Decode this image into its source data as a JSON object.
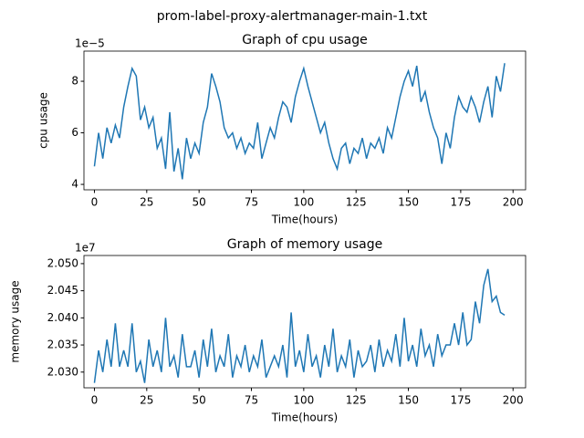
{
  "title": "prom-label-proxy-alertmanager-main-1.txt",
  "chart_data": [
    {
      "type": "line",
      "title": "Graph of cpu usage",
      "xlabel": "Time(hours)",
      "ylabel": "cpu usage",
      "offset_text": "1e−5",
      "x": [
        0,
        2,
        4,
        6,
        8,
        10,
        12,
        14,
        16,
        18,
        20,
        22,
        24,
        26,
        28,
        30,
        32,
        34,
        36,
        38,
        40,
        42,
        44,
        46,
        48,
        50,
        52,
        54,
        56,
        58,
        60,
        62,
        64,
        66,
        68,
        70,
        72,
        74,
        76,
        78,
        80,
        82,
        84,
        86,
        88,
        90,
        92,
        94,
        96,
        98,
        100,
        102,
        104,
        106,
        108,
        110,
        112,
        114,
        116,
        118,
        120,
        122,
        124,
        126,
        128,
        130,
        132,
        134,
        136,
        138,
        140,
        142,
        144,
        146,
        148,
        150,
        152,
        154,
        156,
        158,
        160,
        162,
        164,
        166,
        168,
        170,
        172,
        174,
        176,
        178,
        180,
        182,
        184,
        186,
        188,
        190,
        192,
        194,
        196
      ],
      "values": [
        4.7,
        6.0,
        5.0,
        6.2,
        5.6,
        6.3,
        5.8,
        7.0,
        7.8,
        8.5,
        8.2,
        6.5,
        7.0,
        6.2,
        6.6,
        5.4,
        5.8,
        4.6,
        6.8,
        4.5,
        5.4,
        4.2,
        5.8,
        5.0,
        5.6,
        5.2,
        6.4,
        7.0,
        8.3,
        7.8,
        7.2,
        6.2,
        5.8,
        6.0,
        5.4,
        5.8,
        5.2,
        5.6,
        5.4,
        6.4,
        5.0,
        5.6,
        6.2,
        5.8,
        6.6,
        7.2,
        7.0,
        6.4,
        7.4,
        8.0,
        8.5,
        7.8,
        7.2,
        6.6,
        6.0,
        6.4,
        5.6,
        5.0,
        4.6,
        5.4,
        5.6,
        4.8,
        5.4,
        5.2,
        5.8,
        5.0,
        5.6,
        5.4,
        5.8,
        5.2,
        6.2,
        5.8,
        6.6,
        7.4,
        8.0,
        8.4,
        7.8,
        8.6,
        7.2,
        7.6,
        6.8,
        6.2,
        5.8,
        4.8,
        6.0,
        5.4,
        6.6,
        7.4,
        7.0,
        6.8,
        7.4,
        7.0,
        6.4,
        7.2,
        7.8,
        6.6,
        8.2,
        7.6,
        8.7
      ],
      "color": "#1f77b4",
      "xlim": [
        -5,
        206
      ],
      "xticks": [
        0,
        25,
        50,
        75,
        100,
        125,
        150,
        175,
        200
      ],
      "ylim": [
        3.79,
        9.17
      ],
      "yticks": [
        4,
        6,
        8
      ]
    },
    {
      "type": "line",
      "title": "Graph of memory usage",
      "xlabel": "Time(hours)",
      "ylabel": "memory usage",
      "offset_text": "1e7",
      "x": [
        0,
        2,
        4,
        6,
        8,
        10,
        12,
        14,
        16,
        18,
        20,
        22,
        24,
        26,
        28,
        30,
        32,
        34,
        36,
        38,
        40,
        42,
        44,
        46,
        48,
        50,
        52,
        54,
        56,
        58,
        60,
        62,
        64,
        66,
        68,
        70,
        72,
        74,
        76,
        78,
        80,
        82,
        84,
        86,
        88,
        90,
        92,
        94,
        96,
        98,
        100,
        102,
        104,
        106,
        108,
        110,
        112,
        114,
        116,
        118,
        120,
        122,
        124,
        126,
        128,
        130,
        132,
        134,
        136,
        138,
        140,
        142,
        144,
        146,
        148,
        150,
        152,
        154,
        156,
        158,
        160,
        162,
        164,
        166,
        168,
        170,
        172,
        174,
        176,
        178,
        180,
        182,
        184,
        186,
        188,
        190,
        192,
        194,
        196
      ],
      "values": [
        2.028,
        2.034,
        2.03,
        2.036,
        2.031,
        2.039,
        2.031,
        2.034,
        2.031,
        2.039,
        2.03,
        2.032,
        2.028,
        2.036,
        2.031,
        2.034,
        2.03,
        2.04,
        2.031,
        2.033,
        2.029,
        2.037,
        2.031,
        2.031,
        2.034,
        2.029,
        2.036,
        2.031,
        2.038,
        2.03,
        2.033,
        2.031,
        2.037,
        2.029,
        2.033,
        2.031,
        2.035,
        2.03,
        2.033,
        2.031,
        2.036,
        2.029,
        2.031,
        2.033,
        2.031,
        2.035,
        2.029,
        2.041,
        2.031,
        2.034,
        2.03,
        2.037,
        2.031,
        2.033,
        2.029,
        2.035,
        2.031,
        2.038,
        2.03,
        2.033,
        2.031,
        2.036,
        2.029,
        2.034,
        2.031,
        2.032,
        2.035,
        2.03,
        2.036,
        2.031,
        2.034,
        2.032,
        2.037,
        2.031,
        2.04,
        2.032,
        2.035,
        2.031,
        2.038,
        2.033,
        2.035,
        2.031,
        2.037,
        2.033,
        2.035,
        2.035,
        2.039,
        2.035,
        2.041,
        2.035,
        2.036,
        2.043,
        2.039,
        2.046,
        2.049,
        2.043,
        2.044,
        2.041,
        2.0405
      ],
      "color": "#1f77b4",
      "xlim": [
        -5,
        206
      ],
      "xticks": [
        0,
        25,
        50,
        75,
        100,
        125,
        150,
        175,
        200
      ],
      "ylim": [
        2.0271,
        2.0515
      ],
      "yticks": [
        {
          "value": 2.03,
          "label": "2.030"
        },
        {
          "value": 2.035,
          "label": "2.035"
        },
        {
          "value": 2.04,
          "label": "2.040"
        },
        {
          "value": 2.045,
          "label": "2.045"
        },
        {
          "value": 2.05,
          "label": "2.050"
        }
      ]
    }
  ]
}
